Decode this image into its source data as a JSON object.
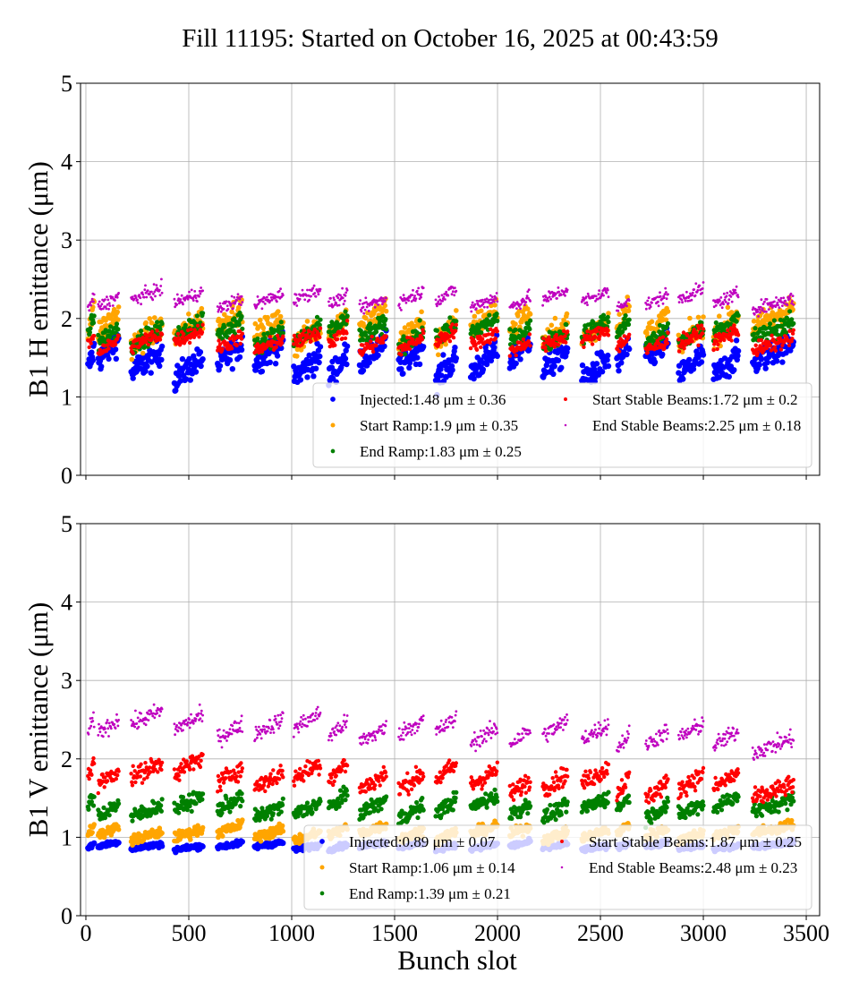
{
  "title": "Fill 11195: Started on October 16, 2025 at 00:43:59",
  "chart_data": [
    {
      "type": "scatter",
      "ylabel": "B1 H emittance (μm)",
      "xlabel": "",
      "xlim": [
        -26,
        3565
      ],
      "ylim": [
        0,
        5
      ],
      "xticks": [
        0,
        500,
        1000,
        1500,
        2000,
        2500,
        3000,
        3500
      ],
      "yticks": [
        0,
        1,
        2,
        3,
        4,
        5
      ],
      "show_xtick_labels": false,
      "grid": true,
      "legend_placement": "lower-right",
      "series": [
        {
          "name": "Injected:1.48 μm ± 0.36",
          "mean": 1.48,
          "std": 0.36,
          "color": "#0000ff"
        },
        {
          "name": "Start Ramp:1.9 μm ± 0.35",
          "mean": 1.9,
          "std": 0.35,
          "color": "#ffa500"
        },
        {
          "name": "End Ramp:1.83 μm ± 0.25",
          "mean": 1.83,
          "std": 0.25,
          "color": "#008000"
        },
        {
          "name": "Start Stable Beams:1.72 μm ± 0.2",
          "mean": 1.72,
          "std": 0.2,
          "color": "#ff0000"
        },
        {
          "name": "End Stable Beams:2.25 μm ± 0.18",
          "mean": 2.25,
          "std": 0.18,
          "color": "#bf00bf"
        }
      ]
    },
    {
      "type": "scatter",
      "ylabel": "B1 V emittance (μm)",
      "xlabel": "Bunch slot",
      "xlim": [
        -26,
        3565
      ],
      "ylim": [
        0,
        5
      ],
      "xticks": [
        0,
        500,
        1000,
        1500,
        2000,
        2500,
        3000,
        3500
      ],
      "yticks": [
        0,
        1,
        2,
        3,
        4,
        5
      ],
      "show_xtick_labels": true,
      "grid": true,
      "legend_placement": "lower-right",
      "series": [
        {
          "name": "Injected:0.89 μm ± 0.07",
          "mean": 0.89,
          "std": 0.07,
          "color": "#0000ff"
        },
        {
          "name": "Start Ramp:1.06 μm ± 0.14",
          "mean": 1.06,
          "std": 0.14,
          "color": "#ffa500"
        },
        {
          "name": "End Ramp:1.39 μm ± 0.21",
          "mean": 1.39,
          "std": 0.21,
          "color": "#008000"
        },
        {
          "name": "Start Stable Beams:1.87 μm ± 0.25",
          "mean": 1.87,
          "std": 0.25,
          "color": "#ff0000"
        },
        {
          "name": "End Stable Beams:2.48 μm ± 0.23",
          "mean": 2.48,
          "std": 0.23,
          "color": "#bf00bf"
        }
      ]
    }
  ],
  "bunch_trains": [
    [
      10,
      40
    ],
    [
      60,
      160
    ],
    [
      220,
      370
    ],
    [
      430,
      570
    ],
    [
      640,
      760
    ],
    [
      820,
      960
    ],
    [
      1010,
      1140
    ],
    [
      1180,
      1270
    ],
    [
      1330,
      1460
    ],
    [
      1520,
      1640
    ],
    [
      1700,
      1800
    ],
    [
      1870,
      2000
    ],
    [
      2060,
      2160
    ],
    [
      2220,
      2340
    ],
    [
      2410,
      2540
    ],
    [
      2580,
      2640
    ],
    [
      2720,
      2830
    ],
    [
      2880,
      3000
    ],
    [
      3050,
      3170
    ],
    [
      3240,
      3440
    ]
  ]
}
